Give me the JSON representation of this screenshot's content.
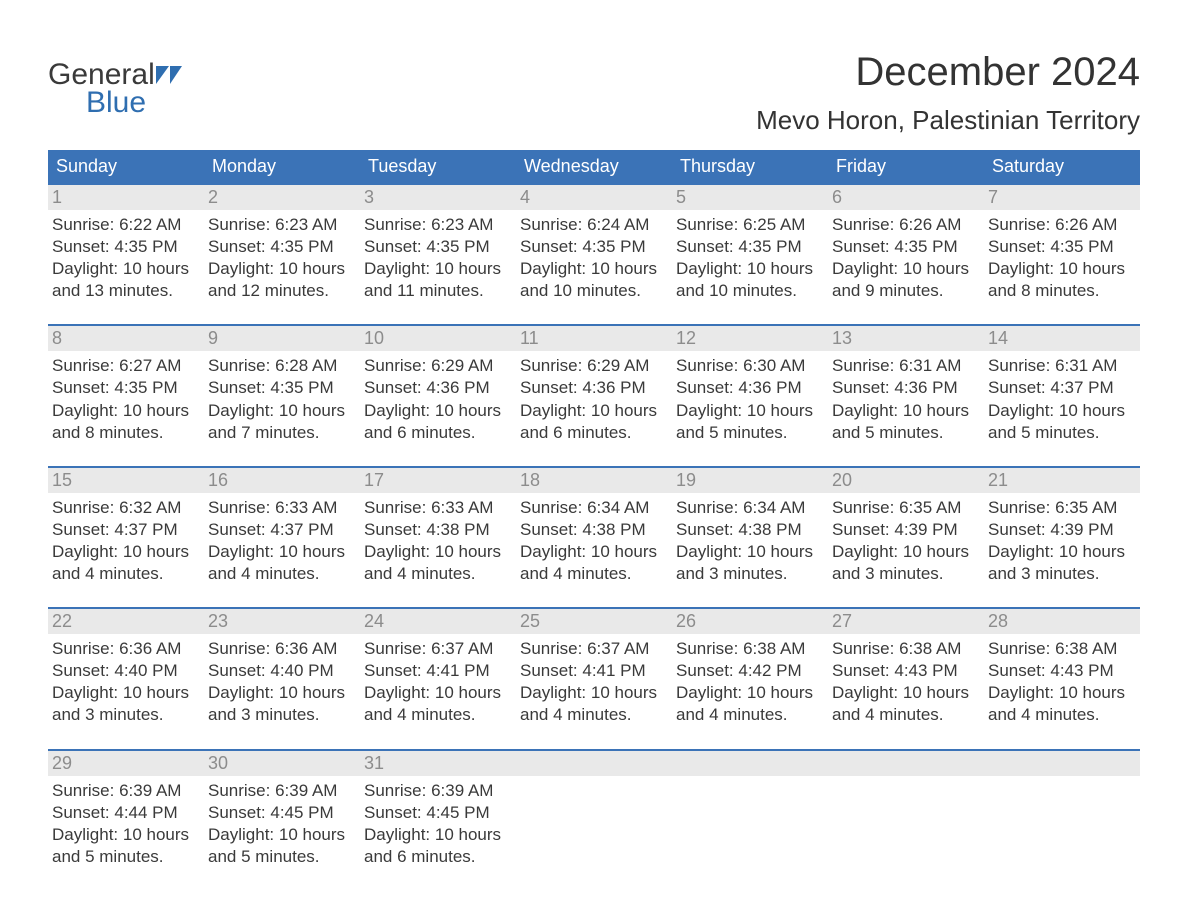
{
  "logo": {
    "text_general": "General",
    "text_blue": "Blue",
    "accent_color": "#2f6eb0",
    "text_color": "#3a3a3a"
  },
  "header": {
    "month_title": "December 2024",
    "location": "Mevo Horon, Palestinian Territory"
  },
  "colors": {
    "header_bg": "#3b73b7",
    "header_fg": "#ffffff",
    "daynum_bg": "#e9e9e9",
    "daynum_fg": "#8c8c8c",
    "body_text": "#3a3a3a",
    "row_divider": "#3b73b7",
    "page_bg": "#ffffff"
  },
  "weekdays": [
    "Sunday",
    "Monday",
    "Tuesday",
    "Wednesday",
    "Thursday",
    "Friday",
    "Saturday"
  ],
  "weeks": [
    {
      "days": [
        {
          "num": "1",
          "sunrise": "Sunrise: 6:22 AM",
          "sunset": "Sunset: 4:35 PM",
          "day1": "Daylight: 10 hours",
          "day2": "and 13 minutes."
        },
        {
          "num": "2",
          "sunrise": "Sunrise: 6:23 AM",
          "sunset": "Sunset: 4:35 PM",
          "day1": "Daylight: 10 hours",
          "day2": "and 12 minutes."
        },
        {
          "num": "3",
          "sunrise": "Sunrise: 6:23 AM",
          "sunset": "Sunset: 4:35 PM",
          "day1": "Daylight: 10 hours",
          "day2": "and 11 minutes."
        },
        {
          "num": "4",
          "sunrise": "Sunrise: 6:24 AM",
          "sunset": "Sunset: 4:35 PM",
          "day1": "Daylight: 10 hours",
          "day2": "and 10 minutes."
        },
        {
          "num": "5",
          "sunrise": "Sunrise: 6:25 AM",
          "sunset": "Sunset: 4:35 PM",
          "day1": "Daylight: 10 hours",
          "day2": "and 10 minutes."
        },
        {
          "num": "6",
          "sunrise": "Sunrise: 6:26 AM",
          "sunset": "Sunset: 4:35 PM",
          "day1": "Daylight: 10 hours",
          "day2": "and 9 minutes."
        },
        {
          "num": "7",
          "sunrise": "Sunrise: 6:26 AM",
          "sunset": "Sunset: 4:35 PM",
          "day1": "Daylight: 10 hours",
          "day2": "and 8 minutes."
        }
      ]
    },
    {
      "days": [
        {
          "num": "8",
          "sunrise": "Sunrise: 6:27 AM",
          "sunset": "Sunset: 4:35 PM",
          "day1": "Daylight: 10 hours",
          "day2": "and 8 minutes."
        },
        {
          "num": "9",
          "sunrise": "Sunrise: 6:28 AM",
          "sunset": "Sunset: 4:35 PM",
          "day1": "Daylight: 10 hours",
          "day2": "and 7 minutes."
        },
        {
          "num": "10",
          "sunrise": "Sunrise: 6:29 AM",
          "sunset": "Sunset: 4:36 PM",
          "day1": "Daylight: 10 hours",
          "day2": "and 6 minutes."
        },
        {
          "num": "11",
          "sunrise": "Sunrise: 6:29 AM",
          "sunset": "Sunset: 4:36 PM",
          "day1": "Daylight: 10 hours",
          "day2": "and 6 minutes."
        },
        {
          "num": "12",
          "sunrise": "Sunrise: 6:30 AM",
          "sunset": "Sunset: 4:36 PM",
          "day1": "Daylight: 10 hours",
          "day2": "and 5 minutes."
        },
        {
          "num": "13",
          "sunrise": "Sunrise: 6:31 AM",
          "sunset": "Sunset: 4:36 PM",
          "day1": "Daylight: 10 hours",
          "day2": "and 5 minutes."
        },
        {
          "num": "14",
          "sunrise": "Sunrise: 6:31 AM",
          "sunset": "Sunset: 4:37 PM",
          "day1": "Daylight: 10 hours",
          "day2": "and 5 minutes."
        }
      ]
    },
    {
      "days": [
        {
          "num": "15",
          "sunrise": "Sunrise: 6:32 AM",
          "sunset": "Sunset: 4:37 PM",
          "day1": "Daylight: 10 hours",
          "day2": "and 4 minutes."
        },
        {
          "num": "16",
          "sunrise": "Sunrise: 6:33 AM",
          "sunset": "Sunset: 4:37 PM",
          "day1": "Daylight: 10 hours",
          "day2": "and 4 minutes."
        },
        {
          "num": "17",
          "sunrise": "Sunrise: 6:33 AM",
          "sunset": "Sunset: 4:38 PM",
          "day1": "Daylight: 10 hours",
          "day2": "and 4 minutes."
        },
        {
          "num": "18",
          "sunrise": "Sunrise: 6:34 AM",
          "sunset": "Sunset: 4:38 PM",
          "day1": "Daylight: 10 hours",
          "day2": "and 4 minutes."
        },
        {
          "num": "19",
          "sunrise": "Sunrise: 6:34 AM",
          "sunset": "Sunset: 4:38 PM",
          "day1": "Daylight: 10 hours",
          "day2": "and 3 minutes."
        },
        {
          "num": "20",
          "sunrise": "Sunrise: 6:35 AM",
          "sunset": "Sunset: 4:39 PM",
          "day1": "Daylight: 10 hours",
          "day2": "and 3 minutes."
        },
        {
          "num": "21",
          "sunrise": "Sunrise: 6:35 AM",
          "sunset": "Sunset: 4:39 PM",
          "day1": "Daylight: 10 hours",
          "day2": "and 3 minutes."
        }
      ]
    },
    {
      "days": [
        {
          "num": "22",
          "sunrise": "Sunrise: 6:36 AM",
          "sunset": "Sunset: 4:40 PM",
          "day1": "Daylight: 10 hours",
          "day2": "and 3 minutes."
        },
        {
          "num": "23",
          "sunrise": "Sunrise: 6:36 AM",
          "sunset": "Sunset: 4:40 PM",
          "day1": "Daylight: 10 hours",
          "day2": "and 3 minutes."
        },
        {
          "num": "24",
          "sunrise": "Sunrise: 6:37 AM",
          "sunset": "Sunset: 4:41 PM",
          "day1": "Daylight: 10 hours",
          "day2": "and 4 minutes."
        },
        {
          "num": "25",
          "sunrise": "Sunrise: 6:37 AM",
          "sunset": "Sunset: 4:41 PM",
          "day1": "Daylight: 10 hours",
          "day2": "and 4 minutes."
        },
        {
          "num": "26",
          "sunrise": "Sunrise: 6:38 AM",
          "sunset": "Sunset: 4:42 PM",
          "day1": "Daylight: 10 hours",
          "day2": "and 4 minutes."
        },
        {
          "num": "27",
          "sunrise": "Sunrise: 6:38 AM",
          "sunset": "Sunset: 4:43 PM",
          "day1": "Daylight: 10 hours",
          "day2": "and 4 minutes."
        },
        {
          "num": "28",
          "sunrise": "Sunrise: 6:38 AM",
          "sunset": "Sunset: 4:43 PM",
          "day1": "Daylight: 10 hours",
          "day2": "and 4 minutes."
        }
      ]
    },
    {
      "days": [
        {
          "num": "29",
          "sunrise": "Sunrise: 6:39 AM",
          "sunset": "Sunset: 4:44 PM",
          "day1": "Daylight: 10 hours",
          "day2": "and 5 minutes."
        },
        {
          "num": "30",
          "sunrise": "Sunrise: 6:39 AM",
          "sunset": "Sunset: 4:45 PM",
          "day1": "Daylight: 10 hours",
          "day2": "and 5 minutes."
        },
        {
          "num": "31",
          "sunrise": "Sunrise: 6:39 AM",
          "sunset": "Sunset: 4:45 PM",
          "day1": "Daylight: 10 hours",
          "day2": "and 6 minutes."
        },
        {
          "num": "",
          "sunrise": "",
          "sunset": "",
          "day1": "",
          "day2": ""
        },
        {
          "num": "",
          "sunrise": "",
          "sunset": "",
          "day1": "",
          "day2": ""
        },
        {
          "num": "",
          "sunrise": "",
          "sunset": "",
          "day1": "",
          "day2": ""
        },
        {
          "num": "",
          "sunrise": "",
          "sunset": "",
          "day1": "",
          "day2": ""
        }
      ]
    }
  ]
}
